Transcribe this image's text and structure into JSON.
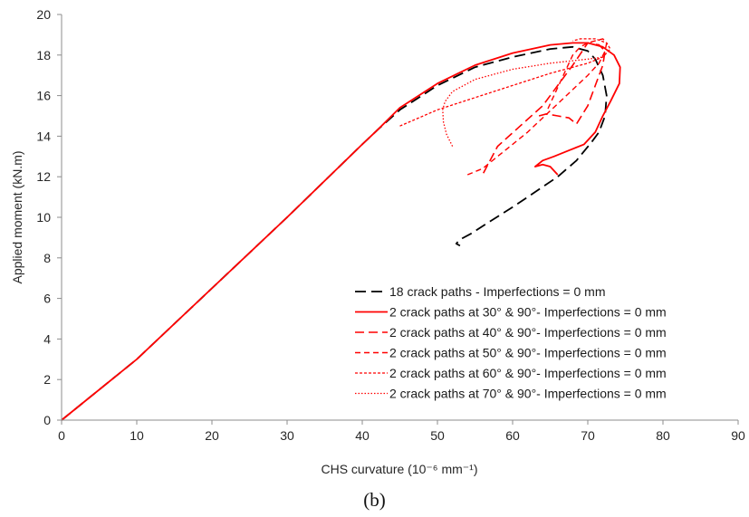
{
  "caption": "(b)",
  "chart_data": {
    "type": "line",
    "title": "",
    "xlabel": "CHS curvature (10⁻⁶ mm⁻¹)",
    "ylabel": "Applied moment (kN.m)",
    "xlim": [
      0,
      90
    ],
    "ylim": [
      0,
      20
    ],
    "xticks": [
      0,
      10,
      20,
      30,
      40,
      50,
      60,
      70,
      80,
      90
    ],
    "yticks": [
      0,
      2,
      4,
      6,
      8,
      10,
      12,
      14,
      16,
      18,
      20
    ],
    "grid": false,
    "legend_position": "bottom-right",
    "series": [
      {
        "name": "18 crack paths - Imperfections = 0 mm",
        "color": "#000000",
        "dash": "long-dash",
        "x": [
          0,
          10,
          20,
          30,
          40,
          42,
          45,
          50,
          55,
          60,
          65,
          68,
          70,
          71,
          72,
          72.5,
          72.3,
          71.5,
          70.5,
          68.5,
          66,
          64,
          60,
          57,
          54.5,
          53,
          52.5,
          53
        ],
        "y": [
          0,
          3,
          6.5,
          10,
          13.6,
          14.3,
          15.3,
          16.5,
          17.4,
          17.9,
          18.3,
          18.4,
          18.2,
          17.8,
          17.0,
          16.0,
          15.0,
          14.2,
          13.7,
          12.8,
          12.0,
          11.5,
          10.5,
          9.8,
          9.2,
          8.9,
          8.7,
          8.6
        ]
      },
      {
        "name": "2 crack paths at 30° & 90°- Imperfections = 0 mm",
        "color": "#ff0000",
        "dash": "solid",
        "x": [
          0,
          10,
          20,
          30,
          40,
          42,
          45,
          50,
          55,
          60,
          65,
          68,
          70,
          72,
          73.5,
          74.3,
          74.2,
          73,
          72,
          71,
          69.5,
          67.5,
          65.5,
          64,
          63,
          64,
          65,
          66
        ],
        "y": [
          0,
          3,
          6.5,
          10,
          13.6,
          14.3,
          15.4,
          16.6,
          17.5,
          18.1,
          18.5,
          18.6,
          18.6,
          18.4,
          18.0,
          17.4,
          16.6,
          15.7,
          15.0,
          14.2,
          13.6,
          13.3,
          13.0,
          12.8,
          12.5,
          12.6,
          12.5,
          12.1
        ]
      },
      {
        "name": "2 crack paths at 40° & 90°- Imperfections = 0 mm",
        "color": "#ff0000",
        "dash": "dash",
        "x": [
          63.5,
          64.5,
          66,
          67.5,
          68.5,
          70,
          71,
          72,
          72.3,
          71.5,
          70,
          68,
          66,
          64,
          61,
          58,
          56
        ],
        "y": [
          15.0,
          15.1,
          15.0,
          14.9,
          14.6,
          15.5,
          16.5,
          17.5,
          18.2,
          18.5,
          18.6,
          17.5,
          16.5,
          15.5,
          14.5,
          13.5,
          12.1
        ]
      },
      {
        "name": "2 crack paths at 50° & 90°- Imperfections = 0 mm",
        "color": "#ff0000",
        "dash": "short-dash",
        "x": [
          54,
          56,
          58,
          60,
          62,
          64,
          66,
          68,
          70,
          71.5,
          72.3,
          72.5,
          72,
          71,
          70,
          69,
          68,
          67,
          66,
          65,
          64.5
        ],
        "y": [
          12.1,
          12.4,
          13.0,
          13.6,
          14.2,
          14.9,
          15.6,
          16.3,
          17.0,
          17.6,
          18.2,
          18.6,
          18.8,
          18.7,
          18.6,
          18.4,
          18.0,
          17.2,
          16.4,
          15.6,
          15.2
        ]
      },
      {
        "name": "2 crack paths at 60° & 90°- Imperfections = 0 mm",
        "color": "#ff0000",
        "dash": "dense-dash",
        "x": [
          45,
          50,
          55,
          60,
          65,
          70,
          72,
          73,
          72.5,
          71,
          69,
          68
        ],
        "y": [
          14.5,
          15.3,
          15.9,
          16.5,
          17.1,
          17.6,
          17.9,
          18.3,
          18.6,
          18.8,
          18.8,
          18.7
        ]
      },
      {
        "name": "2 crack paths at 70° & 90°- Imperfections = 0 mm",
        "color": "#ff0000",
        "dash": "dotted",
        "x": [
          52,
          51.2,
          50.8,
          50.7,
          51,
          52,
          55,
          60,
          65,
          70,
          72
        ],
        "y": [
          13.5,
          14.1,
          14.7,
          15.3,
          15.7,
          16.2,
          16.8,
          17.3,
          17.6,
          17.8,
          17.9
        ]
      }
    ]
  }
}
